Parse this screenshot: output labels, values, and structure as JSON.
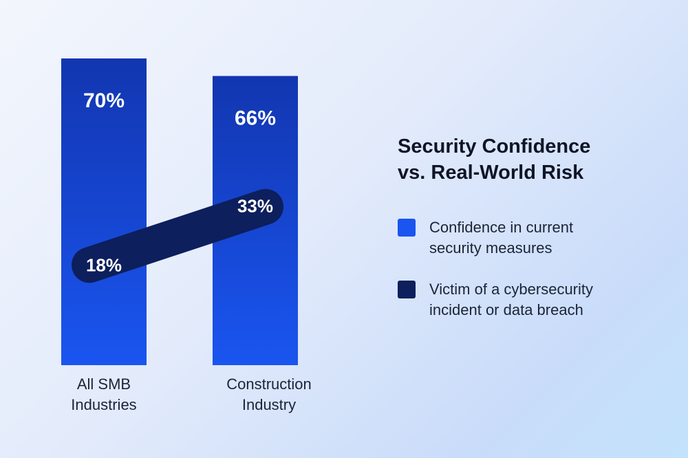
{
  "chart_data": {
    "type": "bar",
    "title_lines": [
      "Security Confidence",
      "vs. Real-World Risk"
    ],
    "categories": [
      [
        "All SMB",
        "Industries"
      ],
      [
        "Construction",
        "Industry"
      ]
    ],
    "series": [
      {
        "name_lines": [
          "Confidence in current",
          "security measures"
        ],
        "kind": "bar",
        "values": [
          70,
          66
        ],
        "labels": [
          "70%",
          "66%"
        ],
        "color": "#1a4fe8"
      },
      {
        "name_lines": [
          "Victim of a cybersecurity",
          "incident or data breach"
        ],
        "kind": "line",
        "values": [
          18,
          33
        ],
        "labels": [
          "18%",
          "33%"
        ],
        "color": "#0d1f5c"
      }
    ],
    "ylim": [
      0,
      70
    ],
    "grid": false,
    "legend_position": "right"
  }
}
